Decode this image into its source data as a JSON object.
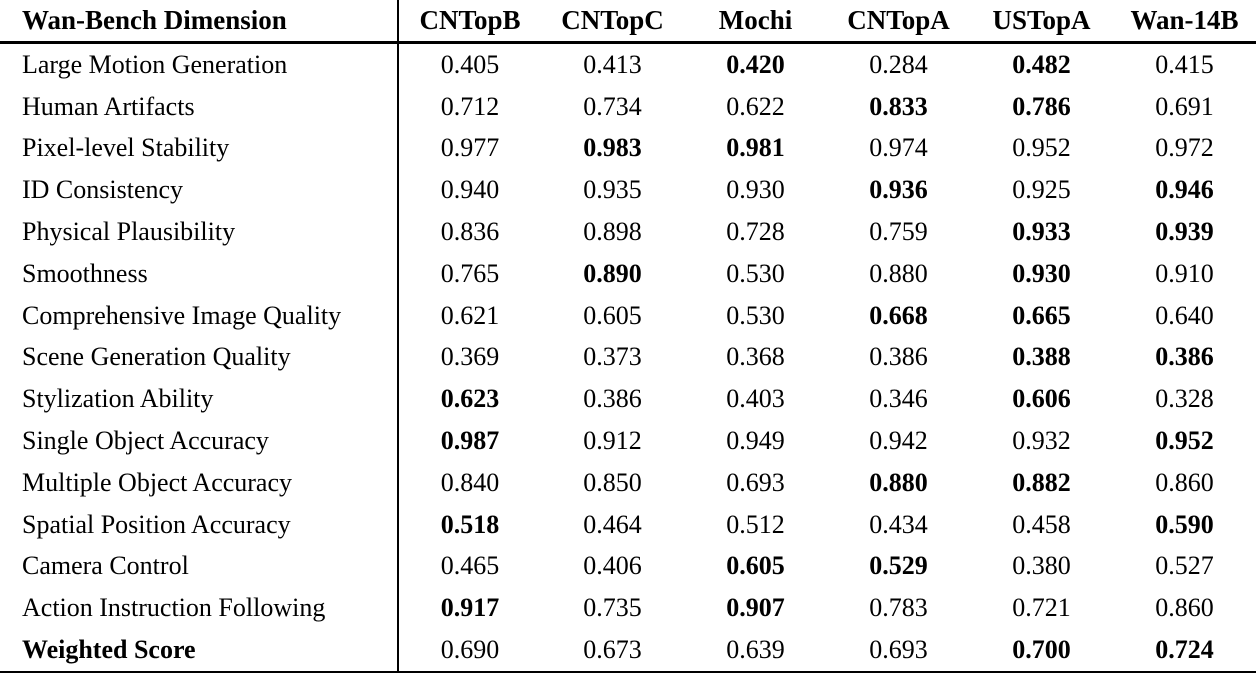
{
  "table": {
    "columns": [
      "Wan-Bench Dimension",
      "CNTopB",
      "CNTopC",
      "Mochi",
      "CNTopA",
      "USTopA",
      "Wan-14B"
    ],
    "rows": [
      {
        "label": "Large Motion Generation",
        "bold_label": false,
        "values": [
          "0.405",
          "0.413",
          "0.420",
          "0.284",
          "0.482",
          "0.415"
        ],
        "bold": [
          false,
          false,
          true,
          false,
          true,
          false
        ]
      },
      {
        "label": "Human Artifacts",
        "bold_label": false,
        "values": [
          "0.712",
          "0.734",
          "0.622",
          "0.833",
          "0.786",
          "0.691"
        ],
        "bold": [
          false,
          false,
          false,
          true,
          true,
          false
        ]
      },
      {
        "label": "Pixel-level Stability",
        "bold_label": false,
        "values": [
          "0.977",
          "0.983",
          "0.981",
          "0.974",
          "0.952",
          "0.972"
        ],
        "bold": [
          false,
          true,
          true,
          false,
          false,
          false
        ]
      },
      {
        "label": "ID Consistency",
        "bold_label": false,
        "values": [
          "0.940",
          "0.935",
          "0.930",
          "0.936",
          "0.925",
          "0.946"
        ],
        "bold": [
          false,
          false,
          false,
          true,
          false,
          true
        ]
      },
      {
        "label": "Physical Plausibility",
        "bold_label": false,
        "values": [
          "0.836",
          "0.898",
          "0.728",
          "0.759",
          "0.933",
          "0.939"
        ],
        "bold": [
          false,
          false,
          false,
          false,
          true,
          true
        ]
      },
      {
        "label": "Smoothness",
        "bold_label": false,
        "values": [
          "0.765",
          "0.890",
          "0.530",
          "0.880",
          "0.930",
          "0.910"
        ],
        "bold": [
          false,
          true,
          false,
          false,
          true,
          false
        ]
      },
      {
        "label": "Comprehensive Image Quality",
        "bold_label": false,
        "values": [
          "0.621",
          "0.605",
          "0.530",
          "0.668",
          "0.665",
          "0.640"
        ],
        "bold": [
          false,
          false,
          false,
          true,
          true,
          false
        ]
      },
      {
        "label": "Scene Generation Quality",
        "bold_label": false,
        "values": [
          "0.369",
          "0.373",
          "0.368",
          "0.386",
          "0.388",
          "0.386"
        ],
        "bold": [
          false,
          false,
          false,
          false,
          true,
          true
        ]
      },
      {
        "label": "Stylization Ability",
        "bold_label": false,
        "values": [
          "0.623",
          "0.386",
          "0.403",
          "0.346",
          "0.606",
          "0.328"
        ],
        "bold": [
          true,
          false,
          false,
          false,
          true,
          false
        ]
      },
      {
        "label": "Single Object Accuracy",
        "bold_label": false,
        "values": [
          "0.987",
          "0.912",
          "0.949",
          "0.942",
          "0.932",
          "0.952"
        ],
        "bold": [
          true,
          false,
          false,
          false,
          false,
          true
        ]
      },
      {
        "label": "Multiple Object Accuracy",
        "bold_label": false,
        "values": [
          "0.840",
          "0.850",
          "0.693",
          "0.880",
          "0.882",
          "0.860"
        ],
        "bold": [
          false,
          false,
          false,
          true,
          true,
          false
        ]
      },
      {
        "label": "Spatial Position Accuracy",
        "bold_label": false,
        "values": [
          "0.518",
          "0.464",
          "0.512",
          "0.434",
          "0.458",
          "0.590"
        ],
        "bold": [
          true,
          false,
          false,
          false,
          false,
          true
        ]
      },
      {
        "label": "Camera Control",
        "bold_label": false,
        "values": [
          "0.465",
          "0.406",
          "0.605",
          "0.529",
          "0.380",
          "0.527"
        ],
        "bold": [
          false,
          false,
          true,
          true,
          false,
          false
        ]
      },
      {
        "label": "Action Instruction Following",
        "bold_label": false,
        "values": [
          "0.917",
          "0.735",
          "0.907",
          "0.783",
          "0.721",
          "0.860"
        ],
        "bold": [
          true,
          false,
          true,
          false,
          false,
          false
        ]
      },
      {
        "label": "Weighted Score",
        "bold_label": true,
        "values": [
          "0.690",
          "0.673",
          "0.639",
          "0.693",
          "0.700",
          "0.724"
        ],
        "bold": [
          false,
          false,
          false,
          false,
          true,
          true
        ]
      }
    ],
    "colors": {
      "text": "#000000",
      "background": "#ffffff",
      "rule": "#000000"
    }
  }
}
